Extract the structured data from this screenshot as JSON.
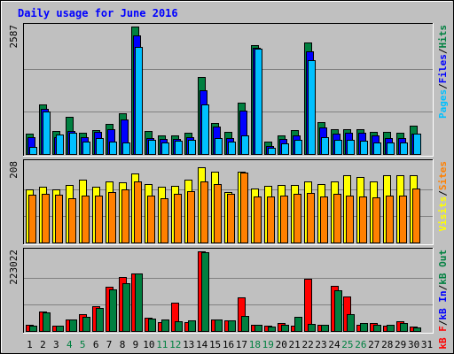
{
  "chart_data": {
    "type": "bar",
    "title": "Daily usage for June 2016",
    "categories": [
      "1",
      "2",
      "3",
      "4",
      "5",
      "6",
      "7",
      "8",
      "9",
      "10",
      "11",
      "12",
      "13",
      "14",
      "15",
      "16",
      "17",
      "18",
      "19",
      "20",
      "21",
      "22",
      "23",
      "24",
      "25",
      "26",
      "27",
      "28",
      "29",
      "30",
      "31"
    ],
    "weekend_days": [
      4,
      5,
      11,
      12,
      18,
      19,
      25,
      26
    ],
    "panels": [
      {
        "id": "hits-files-pages",
        "scale_label": "2587",
        "ymax": 2587,
        "legend": [
          {
            "label": "Pages",
            "color": "#00c0ff"
          },
          {
            "label": "/",
            "color": "#000000"
          },
          {
            "label": "Files",
            "color": "#0000ff"
          },
          {
            "label": "/",
            "color": "#000000"
          },
          {
            "label": "Hits",
            "color": "#008040"
          }
        ],
        "series": [
          {
            "name": "Hits",
            "color": "#008040",
            "values": [
              410,
              1000,
              470,
              760,
              440,
              480,
              610,
              820,
              2587,
              460,
              380,
              380,
              440,
              1560,
              620,
              450,
              1040,
              2210,
              250,
              370,
              480,
              2270,
              640,
              510,
              500,
              500,
              450,
              450,
              430,
              580,
              0
            ]
          },
          {
            "name": "Files",
            "color": "#0000ff",
            "values": [
              340,
              920,
              350,
              470,
              340,
              450,
              510,
              700,
              2410,
              320,
              300,
              310,
              340,
              1290,
              560,
              330,
              880,
              2160,
              170,
              300,
              370,
              2090,
              540,
              410,
              430,
              430,
              380,
              330,
              320,
              420,
              0
            ]
          },
          {
            "name": "Pages",
            "color": "#00c0ff",
            "values": [
              150,
              860,
              400,
              440,
              260,
              320,
              250,
              230,
              2170,
              280,
              240,
              270,
              290,
              1000,
              330,
              250,
              380,
              2130,
              130,
              220,
              290,
              1900,
              340,
              290,
              290,
              270,
              230,
              240,
              230,
              420,
              0
            ]
          }
        ]
      },
      {
        "id": "visits-sites",
        "scale_label": "208",
        "ymax": 208,
        "legend": [
          {
            "label": "Visits",
            "color": "#ffff00"
          },
          {
            "label": "/",
            "color": "#000000"
          },
          {
            "label": "Sites",
            "color": "#ff8000"
          }
        ],
        "series": [
          {
            "name": "Visits",
            "color": "#ffff00",
            "values": [
              139,
              146,
              139,
              150,
              164,
              146,
              160,
              157,
              180,
              153,
              145,
              148,
              165,
              196,
              185,
              131,
              185,
              140,
              148,
              150,
              150,
              160,
              153,
              160,
              175,
              170,
              160,
              175,
              175,
              175,
              0
            ]
          },
          {
            "name": "Sites",
            "color": "#ff8000",
            "values": [
              125,
              127,
              124,
              115,
              123,
              123,
              132,
              138,
              160,
              123,
              116,
              128,
              134,
              160,
              153,
              128,
              183,
              120,
              120,
              123,
              128,
              130,
              120,
              128,
              123,
              120,
              118,
              123,
              123,
              142,
              0
            ]
          }
        ]
      },
      {
        "id": "kbf-kbin-kbout",
        "scale_label": "223022",
        "ymax": 223022,
        "legend": [
          {
            "label": "kB F",
            "color": "#ff0000"
          },
          {
            "label": "/",
            "color": "#000000"
          },
          {
            "label": "kB In",
            "color": "#0000ff"
          },
          {
            "label": "/",
            "color": "#000000"
          },
          {
            "label": "kB Out",
            "color": "#008040"
          }
        ],
        "series": [
          {
            "name": "kB F",
            "color": "#ff0000",
            "values": [
              18000,
              55000,
              14000,
              33000,
              46000,
              70000,
              125000,
              150000,
              160000,
              36000,
              25000,
              79000,
              25000,
              223022,
              33000,
              30000,
              93000,
              18000,
              16000,
              22000,
              15000,
              146000,
              18000,
              126000,
              97000,
              17000,
              22000,
              16000,
              28000,
              13000,
              0
            ]
          },
          {
            "name": "kB In",
            "color": "#0000ff",
            "values": [
              0,
              0,
              0,
              0,
              0,
              0,
              0,
              0,
              0,
              0,
              0,
              0,
              0,
              0,
              0,
              0,
              0,
              0,
              0,
              0,
              0,
              0,
              0,
              0,
              0,
              0,
              0,
              0,
              0,
              0,
              0
            ]
          },
          {
            "name": "kB Out",
            "color": "#008040",
            "values": [
              16000,
              51000,
              14000,
              33000,
              40000,
              65000,
              117000,
              134000,
              160000,
              34000,
              31000,
              27000,
              30000,
              220000,
              33000,
              30000,
              42000,
              18000,
              12000,
              18000,
              40000,
              21000,
              18000,
              115000,
              48000,
              22000,
              18000,
              17000,
              23000,
              10000,
              0
            ]
          }
        ]
      }
    ]
  }
}
